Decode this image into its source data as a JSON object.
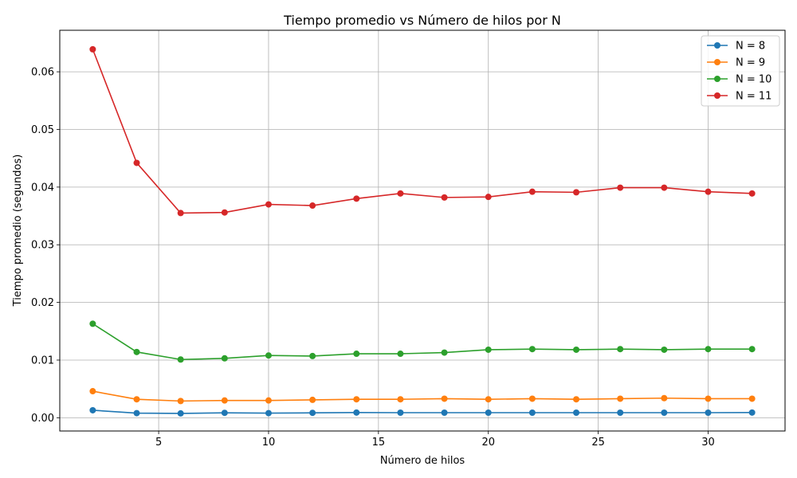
{
  "chart_data": {
    "type": "line",
    "title": "Tiempo promedio vs Número de hilos por N",
    "xlabel": "Número de hilos",
    "ylabel": "Tiempo promedio (segundos)",
    "xlim": [
      0.5,
      33.5
    ],
    "ylim": [
      -0.0023,
      0.0672
    ],
    "x_ticks": [
      5,
      10,
      15,
      20,
      25,
      30
    ],
    "x_tick_labels": [
      "5",
      "10",
      "15",
      "20",
      "25",
      "30"
    ],
    "y_ticks": [
      0.0,
      0.01,
      0.02,
      0.03,
      0.04,
      0.05,
      0.06
    ],
    "y_tick_labels": [
      "0.00",
      "0.01",
      "0.02",
      "0.03",
      "0.04",
      "0.05",
      "0.06"
    ],
    "grid": true,
    "legend_position": "top-right",
    "x": [
      2,
      4,
      6,
      8,
      10,
      12,
      14,
      16,
      18,
      20,
      22,
      24,
      26,
      28,
      30,
      32
    ],
    "series": [
      {
        "name": "N = 8",
        "color": "#1f77b4",
        "values": [
          0.0013,
          0.0008,
          0.00075,
          0.00085,
          0.0008,
          0.00085,
          0.0009,
          0.00088,
          0.00088,
          0.00088,
          0.00088,
          0.00088,
          0.00088,
          0.00088,
          0.00088,
          0.0009
        ]
      },
      {
        "name": "N = 9",
        "color": "#ff7f0e",
        "values": [
          0.0046,
          0.0032,
          0.0029,
          0.003,
          0.003,
          0.0031,
          0.0032,
          0.0032,
          0.0033,
          0.0032,
          0.0033,
          0.0032,
          0.0033,
          0.0034,
          0.0033,
          0.0033
        ]
      },
      {
        "name": "N = 10",
        "color": "#2ca02c",
        "values": [
          0.0163,
          0.0114,
          0.0101,
          0.0103,
          0.0108,
          0.0107,
          0.0111,
          0.0111,
          0.0113,
          0.0118,
          0.0119,
          0.0118,
          0.0119,
          0.0118,
          0.0119,
          0.0119
        ]
      },
      {
        "name": "N = 11",
        "color": "#d62728",
        "values": [
          0.0639,
          0.0442,
          0.0355,
          0.0356,
          0.037,
          0.0368,
          0.038,
          0.0389,
          0.0382,
          0.0383,
          0.0392,
          0.0391,
          0.0399,
          0.0399,
          0.0392,
          0.0389
        ]
      }
    ]
  }
}
